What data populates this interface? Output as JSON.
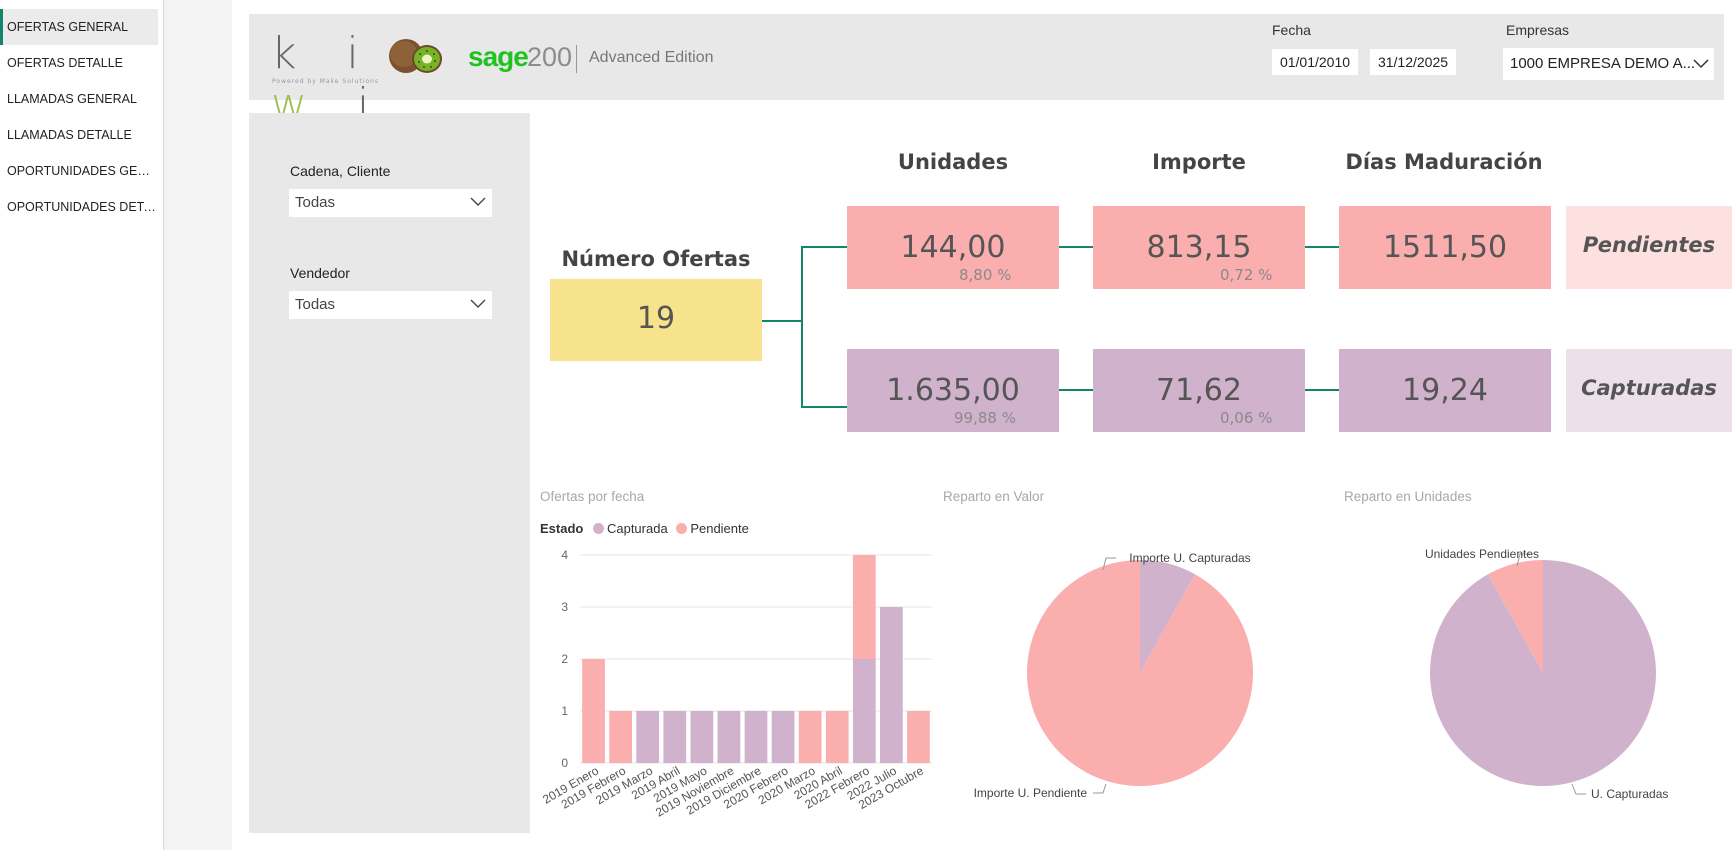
{
  "nav": {
    "items": [
      {
        "label": "OFERTAS GENERAL",
        "active": true
      },
      {
        "label": "OFERTAS DETALLE",
        "active": false
      },
      {
        "label": "LLAMADAS GENERAL",
        "active": false
      },
      {
        "label": "LLAMADAS DETALLE",
        "active": false
      },
      {
        "label": "OPORTUNIDADES GENERAL",
        "active": false
      },
      {
        "label": "OPORTUNIDADES DETALLE",
        "active": false
      }
    ]
  },
  "header": {
    "kiwi_logo": "k i w i",
    "kiwi_tagline": "Powered by Make Solutions",
    "sage_logo": "sage",
    "sage_version": "200",
    "sage_edition": "Advanced Edition",
    "date_label": "Fecha",
    "date_from": "01/01/2010",
    "date_to": "31/12/2025",
    "company_label": "Empresas",
    "company_value": "1000 EMPRESA DEMO A..."
  },
  "filters": {
    "cliente_label": "Cadena, Cliente",
    "cliente_value": "Todas",
    "vendedor_label": "Vendedor",
    "vendedor_value": "Todas"
  },
  "kpis": {
    "numero_ofertas_label": "Número Ofertas",
    "numero_ofertas_value": "19",
    "unidades_label": "Unidades",
    "importe_label": "Importe",
    "dias_label": "Días Maduración",
    "pendientes": {
      "label": "Pendientes",
      "unidades": "144,00",
      "unidades_pct": "8,80 %",
      "importe": "813,15",
      "importe_pct": "0,72 %",
      "dias": "1511,50"
    },
    "capturadas": {
      "label": "Capturadas",
      "unidades": "1.635,00",
      "unidades_pct": "99,88 %",
      "importe": "71,62",
      "importe_pct": "0,06 %",
      "dias": "19,24"
    }
  },
  "colors": {
    "pendiente": "#fbaeae",
    "capturada": "#d1b2cc",
    "connector": "#13856b",
    "yellow": "#f7e38c"
  },
  "chart_data": [
    {
      "type": "bar",
      "stacked": true,
      "title": "Ofertas por fecha",
      "legend_title": "Estado",
      "legend_position": "top-left",
      "categories": [
        "2019 Enero",
        "2019 Febrero",
        "2019 Marzo",
        "2019 Abril",
        "2019 Mayo",
        "2019 Noviembre",
        "2019 Diciembre",
        "2020 Febrero",
        "2020 Marzo",
        "2020 Abril",
        "2022 Febrero",
        "2022 Julio",
        "2023 Octubre"
      ],
      "series": [
        {
          "name": "Capturada",
          "values": [
            0,
            0,
            1,
            1,
            1,
            1,
            1,
            1,
            0,
            0,
            2,
            3,
            0
          ]
        },
        {
          "name": "Pendiente",
          "values": [
            2,
            1,
            0,
            0,
            0,
            0,
            0,
            0,
            1,
            1,
            2,
            0,
            1
          ]
        }
      ],
      "ylim": [
        0,
        4
      ],
      "yticks": [
        "0",
        "1",
        "2",
        "3",
        "4"
      ],
      "grid": true
    },
    {
      "type": "pie",
      "title": "Reparto en Valor",
      "slices": [
        {
          "name": "Importe U. Capturadas",
          "value": 71.62
        },
        {
          "name": "Importe U. Pendiente",
          "value": 813.15
        }
      ]
    },
    {
      "type": "pie",
      "title": "Reparto en Unidades",
      "slices": [
        {
          "name": "U. Capturadas",
          "value": 1635
        },
        {
          "name": "Unidades Pendientes",
          "value": 144
        }
      ]
    }
  ]
}
